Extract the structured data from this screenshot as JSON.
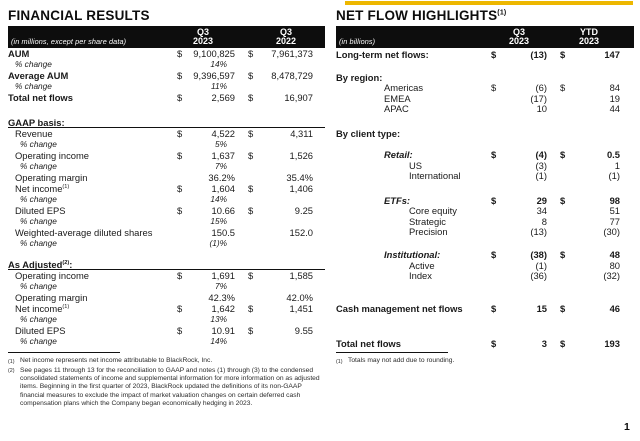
{
  "colors": {
    "accent": "#EDB700",
    "header_bg": "#0D0D0D"
  },
  "page_number": "1",
  "financial_results": {
    "title": "FINANCIAL RESULTS",
    "unit_note": "(in millions, except per share data)",
    "columns": [
      {
        "line1": "Q3",
        "line2": "2023"
      },
      {
        "line1": "Q3",
        "line2": "2022"
      }
    ],
    "rows": [
      {
        "label": "AUM",
        "style": "bold",
        "d1": "$",
        "v1": "9,100,825",
        "d2": "$",
        "v2": "7,961,373"
      },
      {
        "label": "% change",
        "style": "pct",
        "indent": 1,
        "v1": "14%"
      },
      {
        "label": "Average AUM",
        "style": "bold",
        "d1": "$",
        "v1": "9,396,597",
        "d2": "$",
        "v2": "8,478,729"
      },
      {
        "label": "% change",
        "style": "pct",
        "indent": 1,
        "v1": "11%"
      },
      {
        "label": "Total net flows",
        "style": "bold",
        "d1": "$",
        "v1": "2,569",
        "d2": "$",
        "v2": "16,907"
      },
      {
        "label": "GAAP basis:",
        "style": "section",
        "gap": 14
      },
      {
        "label": "Revenue",
        "style": "item",
        "indent": 1,
        "d1": "$",
        "v1": "4,522",
        "d2": "$",
        "v2": "4,311"
      },
      {
        "label": "% change",
        "style": "pct",
        "indent": 2,
        "v1": "5%"
      },
      {
        "label": "Operating income",
        "style": "item",
        "indent": 1,
        "d1": "$",
        "v1": "1,637",
        "d2": "$",
        "v2": "1,526"
      },
      {
        "label": "% change",
        "style": "pct",
        "indent": 2,
        "v1": "7%"
      },
      {
        "label": "Operating margin",
        "style": "item",
        "indent": 1,
        "v1": "36.2%",
        "v2": "35.4%"
      },
      {
        "label": "Net income",
        "sup": "(1)",
        "style": "item",
        "indent": 1,
        "d1": "$",
        "v1": "1,604",
        "d2": "$",
        "v2": "1,406"
      },
      {
        "label": "% change",
        "style": "pct",
        "indent": 2,
        "v1": "14%"
      },
      {
        "label": "Diluted EPS",
        "style": "item",
        "indent": 1,
        "d1": "$",
        "v1": "10.66",
        "d2": "$",
        "v2": "9.25"
      },
      {
        "label": "% change",
        "style": "pct",
        "indent": 2,
        "v1": "15%"
      },
      {
        "label": "Weighted-average diluted shares",
        "style": "item",
        "indent": 1,
        "v1": "150.5",
        "v2": "152.0"
      },
      {
        "label": "% change",
        "style": "pct",
        "indent": 2,
        "v1": "(1)%"
      },
      {
        "label": "As Adjusted",
        "sup": "(2)",
        "after": ":",
        "style": "section",
        "gap": 10
      },
      {
        "label": "Operating income",
        "style": "item",
        "indent": 1,
        "d1": "$",
        "v1": "1,691",
        "d2": "$",
        "v2": "1,585"
      },
      {
        "label": "% change",
        "style": "pct",
        "indent": 2,
        "v1": "7%"
      },
      {
        "label": "Operating margin",
        "style": "item",
        "indent": 1,
        "v1": "42.3%",
        "v2": "42.0%"
      },
      {
        "label": "Net income",
        "sup": "(1)",
        "style": "item",
        "indent": 1,
        "d1": "$",
        "v1": "1,642",
        "d2": "$",
        "v2": "1,451"
      },
      {
        "label": "% change",
        "style": "pct",
        "indent": 2,
        "v1": "13%"
      },
      {
        "label": "Diluted EPS",
        "style": "item",
        "indent": 1,
        "d1": "$",
        "v1": "10.91",
        "d2": "$",
        "v2": "9.55"
      },
      {
        "label": "% change",
        "style": "pct",
        "indent": 2,
        "v1": "14%"
      }
    ],
    "footnotes": [
      {
        "mark": "(1)",
        "text": "Net income represents net income attributable to BlackRock, Inc."
      },
      {
        "mark": "(2)",
        "text": "See pages 11 through 13 for the reconciliation to GAAP and notes (1) through (3) to the condensed consolidated statements of income and supplemental information for more information on as adjusted items. Beginning in the first quarter of 2023, BlackRock updated the definitions of its non-GAAP financial measures to exclude the impact of market valuation changes on certain deferred cash compensation plans which the Company began economically hedging in 2023."
      }
    ]
  },
  "net_flow_highlights": {
    "title": "NET FLOW HIGHLIGHTS",
    "title_sup": "(1)",
    "unit_note": "(in billions)",
    "columns": [
      {
        "line1": "Q3",
        "line2": "2023"
      },
      {
        "line1": "YTD",
        "line2": "2023"
      }
    ],
    "rows": [
      {
        "label": "Long-term net flows:",
        "style": "boldrow",
        "gap": 2,
        "d1": "$",
        "v1": "(13)",
        "d2": "$",
        "v2": "147"
      },
      {
        "label": "By region:",
        "style": "group",
        "gap": 12
      },
      {
        "label": "Americas",
        "style": "item",
        "indent": 1,
        "d1": "$",
        "v1": "(6)",
        "d2": "$",
        "v2": "84"
      },
      {
        "label": "EMEA",
        "style": "item",
        "indent": 1,
        "v1": "(17)",
        "v2": "19"
      },
      {
        "label": "APAC",
        "style": "item",
        "indent": 1,
        "v1": "10",
        "v2": "44"
      },
      {
        "label": "By client type:",
        "style": "group",
        "gap": 14
      },
      {
        "label": "Retail:",
        "style": "bolditalic",
        "indent": 1,
        "gap": 11,
        "d1": "$",
        "v1": "(4)",
        "d2": "$",
        "v2": "0.5"
      },
      {
        "label": "US",
        "style": "item",
        "indent": 2,
        "v1": "(3)",
        "v2": "1"
      },
      {
        "label": "International",
        "style": "item",
        "indent": 2,
        "v1": "(1)",
        "v2": "(1)"
      },
      {
        "label": "ETFs:",
        "style": "bolditalic",
        "indent": 1,
        "gap": 14,
        "d1": "$",
        "v1": "29",
        "d2": "$",
        "v2": "98"
      },
      {
        "label": "Core equity",
        "style": "item",
        "indent": 2,
        "v1": "34",
        "v2": "51"
      },
      {
        "label": "Strategic",
        "style": "item",
        "indent": 2,
        "v1": "8",
        "v2": "77"
      },
      {
        "label": "Precision",
        "style": "item",
        "indent": 2,
        "v1": "(13)",
        "v2": "(30)"
      },
      {
        "label": "Institutional:",
        "style": "bolditalic",
        "indent": 1,
        "gap": 12.5,
        "d1": "$",
        "v1": "(38)",
        "d2": "$",
        "v2": "48"
      },
      {
        "label": "Active",
        "style": "item",
        "indent": 2,
        "v1": "(1)",
        "v2": "80"
      },
      {
        "label": "Index",
        "style": "item",
        "indent": 2,
        "v1": "(36)",
        "v2": "(32)"
      },
      {
        "label": "Cash management net flows",
        "style": "boldrow",
        "gap": 22.5,
        "d1": "$",
        "v1": "15",
        "d2": "$",
        "v2": "46"
      },
      {
        "label": "Total net flows",
        "style": "boldrow",
        "gap": 24,
        "d1": "$",
        "v1": "3",
        "d2": "$",
        "v2": "193"
      }
    ],
    "footnotes": [
      {
        "mark": "(1)",
        "text": "Totals may not add due to rounding."
      }
    ]
  }
}
